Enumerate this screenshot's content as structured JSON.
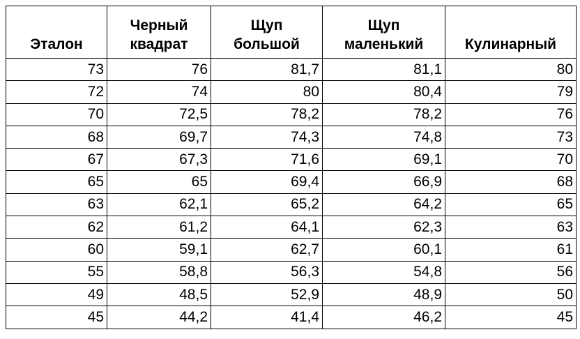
{
  "table": {
    "header": [
      [
        "Эталон"
      ],
      [
        "Черный",
        "квадрат"
      ],
      [
        "Щуп",
        "большой"
      ],
      [
        "Щуп",
        "маленький"
      ],
      [
        "Кулинарный"
      ]
    ],
    "rows": [
      [
        "73",
        "76",
        "81,7",
        "81,1",
        "80"
      ],
      [
        "72",
        "74",
        "80",
        "80,4",
        "79"
      ],
      [
        "70",
        "72,5",
        "78,2",
        "78,2",
        "76"
      ],
      [
        "68",
        "69,7",
        "74,3",
        "74,8",
        "73"
      ],
      [
        "67",
        "67,3",
        "71,6",
        "69,1",
        "70"
      ],
      [
        "65",
        "65",
        "69,4",
        "66,9",
        "68"
      ],
      [
        "63",
        "62,1",
        "65,2",
        "64,2",
        "65"
      ],
      [
        "62",
        "61,2",
        "64,1",
        "62,3",
        "63"
      ],
      [
        "60",
        "59,1",
        "62,7",
        "60,1",
        "61"
      ],
      [
        "55",
        "58,8",
        "56,3",
        "54,8",
        "56"
      ],
      [
        "49",
        "48,5",
        "52,9",
        "48,9",
        "50"
      ],
      [
        "45",
        "44,2",
        "41,4",
        "46,2",
        "45"
      ]
    ]
  }
}
